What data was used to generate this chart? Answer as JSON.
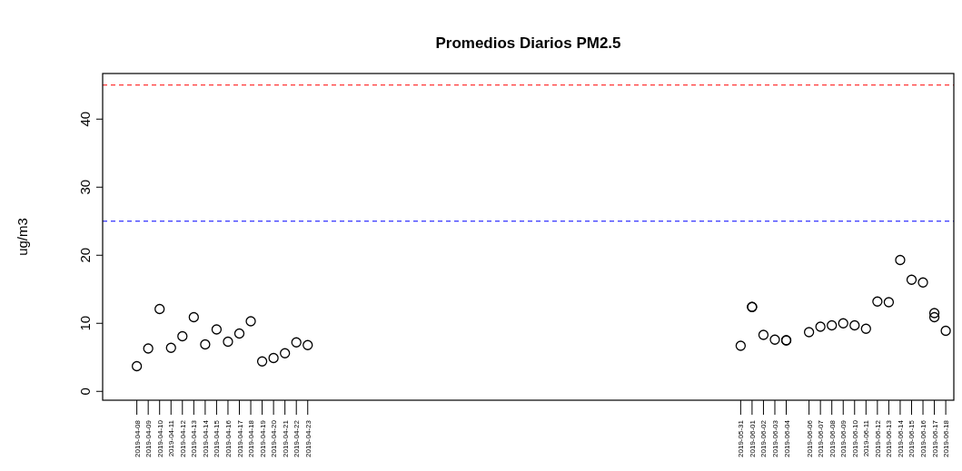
{
  "chart_data": {
    "type": "scatter",
    "title": "Promedios Diarios PM2.5",
    "ylabel": "ug/m3",
    "series": [
      {
        "color": "#000000",
        "x": [
          "2019-04-08",
          "2019-04-09",
          "2019-04-10",
          "2019-04-11",
          "2019-04-12",
          "2019-04-13",
          "2019-04-14",
          "2019-04-15",
          "2019-04-16",
          "2019-04-17",
          "2019-04-18",
          "2019-04-19",
          "2019-04-20",
          "2019-04-21",
          "2019-04-22",
          "2019-04-23",
          "2019-05-31",
          "2019-06-01",
          "2019-06-01",
          "2019-06-02",
          "2019-06-03",
          "2019-06-04",
          "2019-06-04",
          "2019-06-06",
          "2019-06-07",
          "2019-06-08",
          "2019-06-09",
          "2019-06-10",
          "2019-06-11",
          "2019-06-12",
          "2019-06-13",
          "2019-06-14",
          "2019-06-15",
          "2019-06-16",
          "2019-06-17",
          "2019-06-17",
          "2019-06-18"
        ],
        "values": [
          3.7,
          6.3,
          12.1,
          6.4,
          8.1,
          10.9,
          6.9,
          9.1,
          7.3,
          8.5,
          10.3,
          4.4,
          4.9,
          5.6,
          7.2,
          6.8,
          6.7,
          12.4,
          12.4,
          8.3,
          7.6,
          7.5,
          7.5,
          8.7,
          9.5,
          9.7,
          10.0,
          9.7,
          9.2,
          13.2,
          13.1,
          19.3,
          16.4,
          16.0,
          11.5,
          10.9,
          8.9
        ]
      }
    ],
    "marker": "circle",
    "grid": false,
    "xlim": [
      "2019-04-05",
      "2019-06-18T17:00"
    ],
    "xticks": [
      {
        "value": "2019-04-08",
        "label": "2019-04-08"
      },
      {
        "value": "2019-04-09",
        "label": "2019-04-09"
      },
      {
        "value": "2019-04-10",
        "label": "2019-04-10"
      },
      {
        "value": "2019-04-11",
        "label": "2019-04-11"
      },
      {
        "value": "2019-04-12",
        "label": "2019-04-12"
      },
      {
        "value": "2019-04-13",
        "label": "2019-04-13"
      },
      {
        "value": "2019-04-14",
        "label": "2019-04-14"
      },
      {
        "value": "2019-04-15",
        "label": "2019-04-15"
      },
      {
        "value": "2019-04-16",
        "label": "2019-04-16"
      },
      {
        "value": "2019-04-17",
        "label": "2019-04-17"
      },
      {
        "value": "2019-04-18",
        "label": "2019-04-18"
      },
      {
        "value": "2019-04-19",
        "label": "2019-04-19"
      },
      {
        "value": "2019-04-20",
        "label": "2019-04-20"
      },
      {
        "value": "2019-04-21",
        "label": "2019-04-21"
      },
      {
        "value": "2019-04-22",
        "label": "2019-04-22"
      },
      {
        "value": "2019-04-23",
        "label": "2019-04-23"
      },
      {
        "value": "2019-05-31",
        "label": "2019-05-31"
      },
      {
        "value": "2019-06-01",
        "label": "2019-06-01"
      },
      {
        "value": "2019-06-02",
        "label": "2019-06-02"
      },
      {
        "value": "2019-06-03",
        "label": "2019-06-03"
      },
      {
        "value": "2019-06-04",
        "label": "2019-06-04"
      },
      {
        "value": "2019-06-06",
        "label": "2019-06-06"
      },
      {
        "value": "2019-06-07",
        "label": "2019-06-07"
      },
      {
        "value": "2019-06-08",
        "label": "2019-06-08"
      },
      {
        "value": "2019-06-09",
        "label": "2019-06-09"
      },
      {
        "value": "2019-06-10",
        "label": "2019-06-10"
      },
      {
        "value": "2019-06-11",
        "label": "2019-06-11"
      },
      {
        "value": "2019-06-12",
        "label": "2019-06-12"
      },
      {
        "value": "2019-06-13",
        "label": "2019-06-13"
      },
      {
        "value": "2019-06-14",
        "label": "2019-06-14"
      },
      {
        "value": "2019-06-15",
        "label": "2019-06-15"
      },
      {
        "value": "2019-06-16",
        "label": "2019-06-16"
      },
      {
        "value": "2019-06-17",
        "label": "2019-06-17"
      },
      {
        "value": "2019-06-18",
        "label": "2019-06-18"
      }
    ],
    "ylim": [
      -1.3,
      46.7
    ],
    "yticks": [
      0,
      10,
      20,
      30,
      40
    ],
    "ref_lines": [
      {
        "axis": "y",
        "value": 45,
        "color": "#ff0000",
        "line_style": "dashed"
      },
      {
        "axis": "y",
        "value": 25,
        "color": "#0000ff",
        "line_style": "dashed"
      }
    ]
  }
}
